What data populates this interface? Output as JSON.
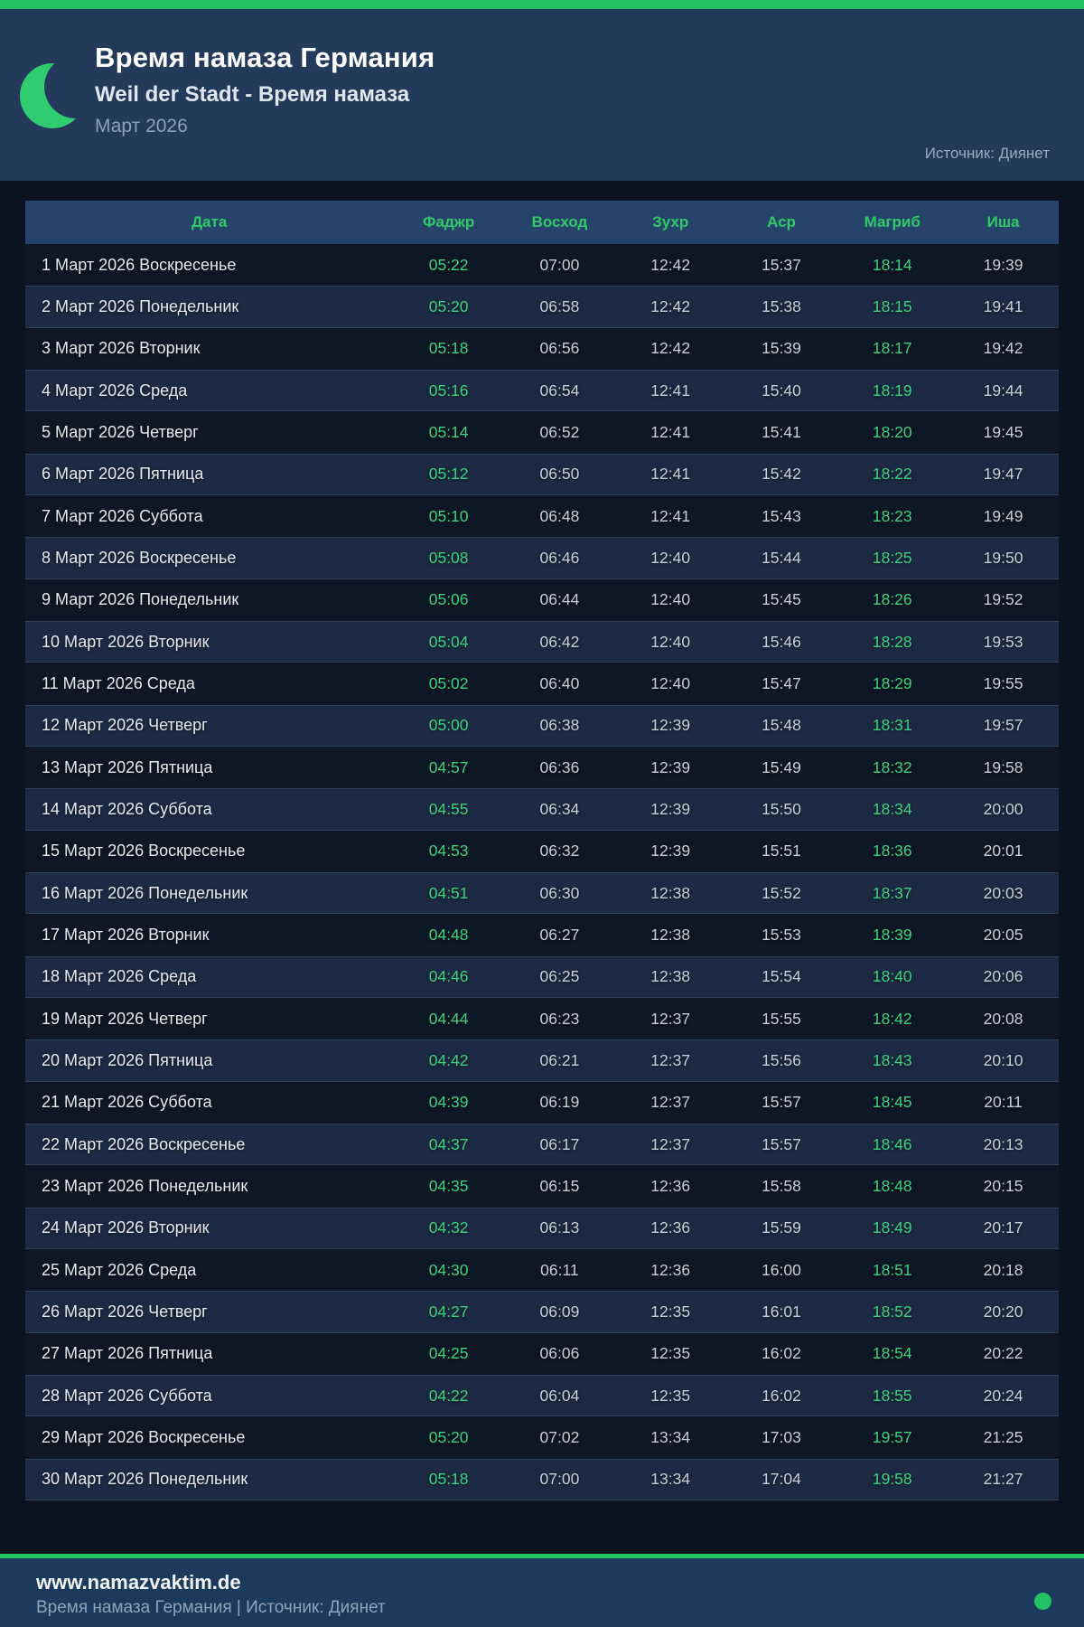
{
  "header": {
    "title": "Время намаза Германия",
    "subtitle": "Weil der Stadt - Время намаза",
    "month": "Март 2026",
    "source": "Источник: Диянет"
  },
  "table": {
    "columns": [
      "Дата",
      "Фаджр",
      "Восход",
      "Зухр",
      "Аср",
      "Магриб",
      "Иша"
    ],
    "highlighted_columns": [
      "Фаджр",
      "Магриб"
    ],
    "rows": [
      {
        "date": "1 Март 2026 Воскресенье",
        "times": [
          "05:22",
          "07:00",
          "12:42",
          "15:37",
          "18:14",
          "19:39"
        ]
      },
      {
        "date": "2 Март 2026 Понедельник",
        "times": [
          "05:20",
          "06:58",
          "12:42",
          "15:38",
          "18:15",
          "19:41"
        ]
      },
      {
        "date": "3 Март 2026 Вторник",
        "times": [
          "05:18",
          "06:56",
          "12:42",
          "15:39",
          "18:17",
          "19:42"
        ]
      },
      {
        "date": "4 Март 2026 Среда",
        "times": [
          "05:16",
          "06:54",
          "12:41",
          "15:40",
          "18:19",
          "19:44"
        ]
      },
      {
        "date": "5 Март 2026 Четверг",
        "times": [
          "05:14",
          "06:52",
          "12:41",
          "15:41",
          "18:20",
          "19:45"
        ]
      },
      {
        "date": "6 Март 2026 Пятница",
        "times": [
          "05:12",
          "06:50",
          "12:41",
          "15:42",
          "18:22",
          "19:47"
        ]
      },
      {
        "date": "7 Март 2026 Суббота",
        "times": [
          "05:10",
          "06:48",
          "12:41",
          "15:43",
          "18:23",
          "19:49"
        ]
      },
      {
        "date": "8 Март 2026 Воскресенье",
        "times": [
          "05:08",
          "06:46",
          "12:40",
          "15:44",
          "18:25",
          "19:50"
        ]
      },
      {
        "date": "9 Март 2026 Понедельник",
        "times": [
          "05:06",
          "06:44",
          "12:40",
          "15:45",
          "18:26",
          "19:52"
        ]
      },
      {
        "date": "10 Март 2026 Вторник",
        "times": [
          "05:04",
          "06:42",
          "12:40",
          "15:46",
          "18:28",
          "19:53"
        ]
      },
      {
        "date": "11 Март 2026 Среда",
        "times": [
          "05:02",
          "06:40",
          "12:40",
          "15:47",
          "18:29",
          "19:55"
        ]
      },
      {
        "date": "12 Март 2026 Четверг",
        "times": [
          "05:00",
          "06:38",
          "12:39",
          "15:48",
          "18:31",
          "19:57"
        ]
      },
      {
        "date": "13 Март 2026 Пятница",
        "times": [
          "04:57",
          "06:36",
          "12:39",
          "15:49",
          "18:32",
          "19:58"
        ]
      },
      {
        "date": "14 Март 2026 Суббота",
        "times": [
          "04:55",
          "06:34",
          "12:39",
          "15:50",
          "18:34",
          "20:00"
        ]
      },
      {
        "date": "15 Март 2026 Воскресенье",
        "times": [
          "04:53",
          "06:32",
          "12:39",
          "15:51",
          "18:36",
          "20:01"
        ]
      },
      {
        "date": "16 Март 2026 Понедельник",
        "times": [
          "04:51",
          "06:30",
          "12:38",
          "15:52",
          "18:37",
          "20:03"
        ]
      },
      {
        "date": "17 Март 2026 Вторник",
        "times": [
          "04:48",
          "06:27",
          "12:38",
          "15:53",
          "18:39",
          "20:05"
        ]
      },
      {
        "date": "18 Март 2026 Среда",
        "times": [
          "04:46",
          "06:25",
          "12:38",
          "15:54",
          "18:40",
          "20:06"
        ]
      },
      {
        "date": "19 Март 2026 Четверг",
        "times": [
          "04:44",
          "06:23",
          "12:37",
          "15:55",
          "18:42",
          "20:08"
        ]
      },
      {
        "date": "20 Март 2026 Пятница",
        "times": [
          "04:42",
          "06:21",
          "12:37",
          "15:56",
          "18:43",
          "20:10"
        ]
      },
      {
        "date": "21 Март 2026 Суббота",
        "times": [
          "04:39",
          "06:19",
          "12:37",
          "15:57",
          "18:45",
          "20:11"
        ]
      },
      {
        "date": "22 Март 2026 Воскресенье",
        "times": [
          "04:37",
          "06:17",
          "12:37",
          "15:57",
          "18:46",
          "20:13"
        ]
      },
      {
        "date": "23 Март 2026 Понедельник",
        "times": [
          "04:35",
          "06:15",
          "12:36",
          "15:58",
          "18:48",
          "20:15"
        ]
      },
      {
        "date": "24 Март 2026 Вторник",
        "times": [
          "04:32",
          "06:13",
          "12:36",
          "15:59",
          "18:49",
          "20:17"
        ]
      },
      {
        "date": "25 Март 2026 Среда",
        "times": [
          "04:30",
          "06:11",
          "12:36",
          "16:00",
          "18:51",
          "20:18"
        ]
      },
      {
        "date": "26 Март 2026 Четверг",
        "times": [
          "04:27",
          "06:09",
          "12:35",
          "16:01",
          "18:52",
          "20:20"
        ]
      },
      {
        "date": "27 Март 2026 Пятница",
        "times": [
          "04:25",
          "06:06",
          "12:35",
          "16:02",
          "18:54",
          "20:22"
        ]
      },
      {
        "date": "28 Март 2026 Суббота",
        "times": [
          "04:22",
          "06:04",
          "12:35",
          "16:02",
          "18:55",
          "20:24"
        ]
      },
      {
        "date": "29 Март 2026 Воскресенье",
        "times": [
          "05:20",
          "07:02",
          "13:34",
          "17:03",
          "19:57",
          "21:25"
        ]
      },
      {
        "date": "30 Март 2026 Понедельник",
        "times": [
          "05:18",
          "07:00",
          "13:34",
          "17:04",
          "19:58",
          "21:27"
        ]
      }
    ]
  },
  "footer": {
    "website": "www.namazvaktim.de",
    "tagline": "Время намаза Германия | Источник: Диянет"
  },
  "colors": {
    "accent_green": "#22c161",
    "header_green_text": "#32ca69",
    "highlight_time_green": "#3ed382",
    "page_bg": "#0b1320",
    "header_bg": "#233a5b",
    "table_header_bg": "#264469",
    "row_odd_bg": "#0e1726",
    "row_even_bg": "#1c2b43",
    "footer_bg": "#1c3a5c"
  }
}
